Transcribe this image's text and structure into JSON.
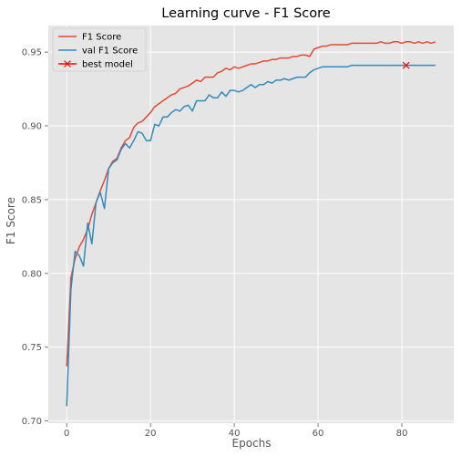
{
  "chart_data": {
    "type": "line",
    "title": "Learning curve - F1 Score",
    "xlabel": "Epochs",
    "ylabel": "F1 Score",
    "xlim": [
      -4.4,
      92.4
    ],
    "ylim": [
      0.6985,
      0.968
    ],
    "x_ticks": [
      0,
      20,
      40,
      60,
      80
    ],
    "y_ticks": [
      0.7,
      0.75,
      0.8,
      0.85,
      0.9,
      0.95
    ],
    "y_tick_labels": [
      "0.70",
      "0.75",
      "0.80",
      "0.85",
      "0.90",
      "0.95"
    ],
    "grid": true,
    "legend_position": "top-left",
    "style": "ggplot",
    "colors": {
      "background": "#e5e5e5",
      "grid": "#ffffff",
      "train": "#e24a33",
      "val": "#348abd",
      "best": "#ff0000"
    },
    "series": [
      {
        "name": "F1 Score",
        "x": [
          0,
          1,
          2,
          3,
          4,
          5,
          6,
          7,
          8,
          9,
          10,
          11,
          12,
          13,
          14,
          15,
          16,
          17,
          18,
          19,
          20,
          21,
          22,
          23,
          24,
          25,
          26,
          27,
          28,
          29,
          30,
          31,
          32,
          33,
          34,
          35,
          36,
          37,
          38,
          39,
          40,
          41,
          42,
          43,
          44,
          45,
          46,
          47,
          48,
          49,
          50,
          51,
          52,
          53,
          54,
          55,
          56,
          57,
          58,
          59,
          60,
          61,
          62,
          63,
          64,
          65,
          66,
          67,
          68,
          69,
          70,
          71,
          72,
          73,
          74,
          75,
          76,
          77,
          78,
          79,
          80,
          81,
          82,
          83,
          84,
          85,
          86,
          87,
          88
        ],
        "y": [
          0.737,
          0.797,
          0.81,
          0.818,
          0.823,
          0.83,
          0.84,
          0.848,
          0.856,
          0.863,
          0.871,
          0.876,
          0.878,
          0.885,
          0.89,
          0.892,
          0.899,
          0.902,
          0.903,
          0.906,
          0.909,
          0.913,
          0.915,
          0.917,
          0.919,
          0.921,
          0.922,
          0.925,
          0.926,
          0.927,
          0.929,
          0.931,
          0.93,
          0.933,
          0.933,
          0.933,
          0.936,
          0.937,
          0.939,
          0.938,
          0.94,
          0.939,
          0.94,
          0.941,
          0.942,
          0.942,
          0.943,
          0.944,
          0.944,
          0.945,
          0.945,
          0.946,
          0.946,
          0.946,
          0.947,
          0.947,
          0.948,
          0.948,
          0.947,
          0.952,
          0.953,
          0.954,
          0.954,
          0.955,
          0.955,
          0.955,
          0.955,
          0.955,
          0.956,
          0.956,
          0.956,
          0.956,
          0.956,
          0.956,
          0.956,
          0.957,
          0.956,
          0.956,
          0.957,
          0.957,
          0.956,
          0.957,
          0.957,
          0.956,
          0.957,
          0.956,
          0.957,
          0.956,
          0.957
        ]
      },
      {
        "name": "val F1 Score",
        "x": [
          0,
          1,
          2,
          3,
          4,
          5,
          6,
          7,
          8,
          9,
          10,
          11,
          12,
          13,
          14,
          15,
          16,
          17,
          18,
          19,
          20,
          21,
          22,
          23,
          24,
          25,
          26,
          27,
          28,
          29,
          30,
          31,
          32,
          33,
          34,
          35,
          36,
          37,
          38,
          39,
          40,
          41,
          42,
          43,
          44,
          45,
          46,
          47,
          48,
          49,
          50,
          51,
          52,
          53,
          54,
          55,
          56,
          57,
          58,
          59,
          60,
          61,
          62,
          63,
          64,
          65,
          66,
          67,
          68,
          69,
          70,
          71,
          72,
          73,
          74,
          75,
          76,
          77,
          78,
          79,
          80,
          81,
          82,
          83,
          84,
          85,
          86,
          87,
          88
        ],
        "y": [
          0.71,
          0.789,
          0.815,
          0.812,
          0.805,
          0.834,
          0.82,
          0.848,
          0.855,
          0.844,
          0.871,
          0.875,
          0.877,
          0.884,
          0.888,
          0.885,
          0.89,
          0.896,
          0.895,
          0.89,
          0.89,
          0.901,
          0.9,
          0.906,
          0.906,
          0.909,
          0.911,
          0.91,
          0.913,
          0.914,
          0.91,
          0.917,
          0.917,
          0.917,
          0.921,
          0.919,
          0.919,
          0.923,
          0.92,
          0.924,
          0.924,
          0.923,
          0.924,
          0.926,
          0.928,
          0.926,
          0.928,
          0.928,
          0.93,
          0.929,
          0.931,
          0.931,
          0.932,
          0.931,
          0.932,
          0.933,
          0.933,
          0.933,
          0.936,
          0.938,
          0.939,
          0.94,
          0.94,
          0.94,
          0.94,
          0.94,
          0.94,
          0.94,
          0.941,
          0.941,
          0.941,
          0.941,
          0.941,
          0.941,
          0.941,
          0.941,
          0.941,
          0.941,
          0.941,
          0.941,
          0.941,
          0.941,
          0.941,
          0.941,
          0.941,
          0.941,
          0.941,
          0.941,
          0.941
        ]
      }
    ],
    "markers": [
      {
        "name": "best model",
        "x": 81,
        "y": 0.941,
        "symbol": "x"
      }
    ]
  }
}
